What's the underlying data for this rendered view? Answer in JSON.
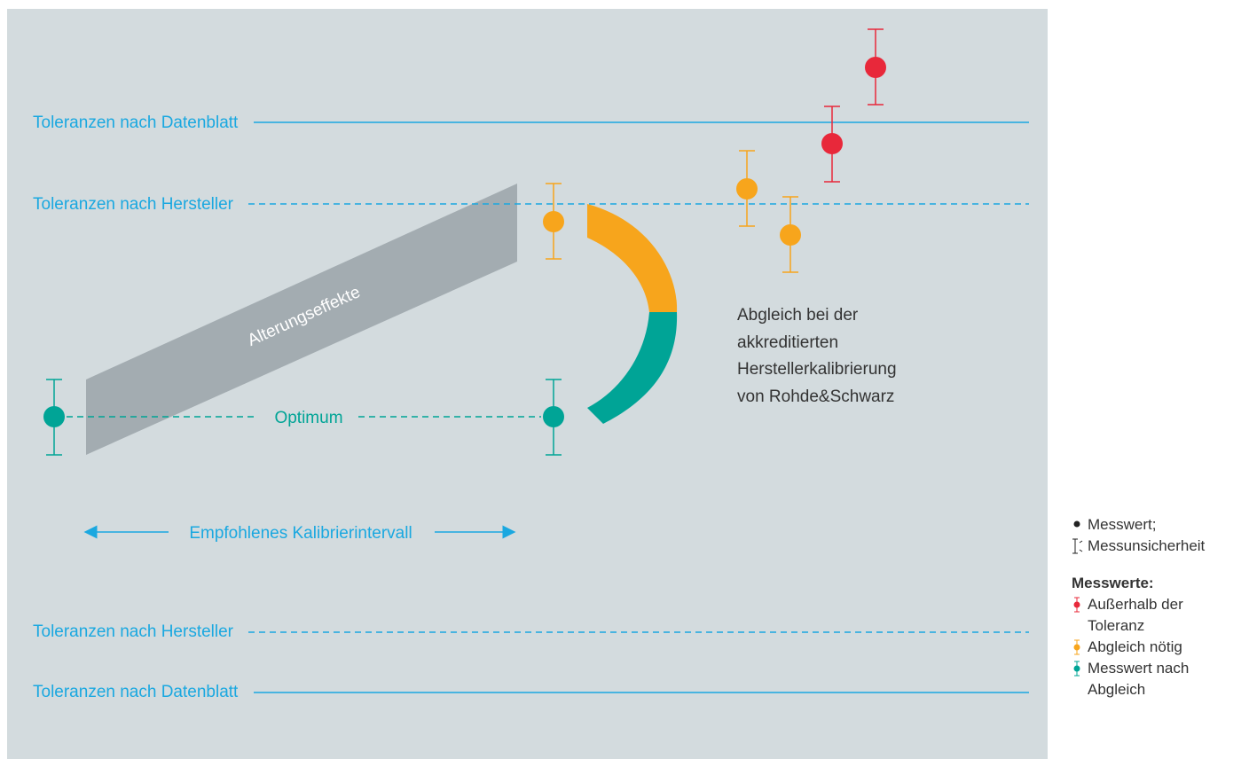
{
  "labels": {
    "datasheet_top": "Toleranzen nach Datenblatt",
    "manufacturer_top": "Toleranzen nach Hersteller",
    "manufacturer_bottom": "Toleranzen nach Hersteller",
    "datasheet_bottom": "Toleranzen nach Datenblatt",
    "optimum": "Optimum",
    "aging": "Alterungseffekte",
    "interval": "Empfohlenes Kalibrierintervall",
    "adjustment_lines": [
      "Abgleich bei der",
      "akkreditierten",
      "Herstellerkalibrierung",
      "von Rohde&Schwarz"
    ]
  },
  "legend": {
    "measured": "Messwert;",
    "uncertainty": "Messunsicherheit",
    "heading": "Messwerte:",
    "outside": "Außerhalb der",
    "outside_cont": "Toleranz",
    "adjust": "Abgleich nötig",
    "after": "Messwert nach",
    "after_cont": "Abgleich"
  },
  "colors": {
    "background": "#d3dbde",
    "blue": "#1aa8e0",
    "teal": "#00a496",
    "orange": "#f7a51c",
    "red": "#e8283a",
    "aging_band": "#a3acb1",
    "text": "#333333"
  },
  "icons": {
    "measured": "dot-icon",
    "uncertainty": "error-bar-icon",
    "outside": "red-error-bar-icon",
    "adjust": "orange-error-bar-icon",
    "after": "teal-error-bar-icon"
  }
}
